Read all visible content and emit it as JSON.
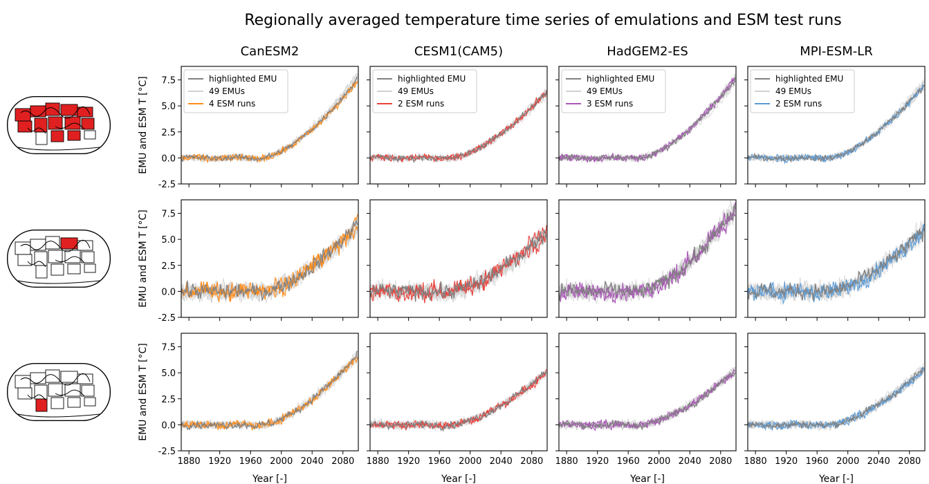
{
  "figure": {
    "title": "Regionally averaged temperature time series of emulations and ESM test runs",
    "row_ylabel": "EMU and ESM T [°C]",
    "xlabel": "Year [-]"
  },
  "models": [
    {
      "name": "CanESM2",
      "color": "#ff8c1a",
      "legend": [
        "highlighted EMU",
        "49 EMUs",
        "4 ESM runs"
      ]
    },
    {
      "name": "CESM1(CAM5)",
      "color": "#e8403a",
      "legend": [
        "highlighted EMU",
        "49 EMUs",
        "2 ESM runs"
      ]
    },
    {
      "name": "HadGEM2-ES",
      "color": "#a855b5",
      "legend": [
        "highlighted EMU",
        "49 EMUs",
        "3 ESM runs"
      ]
    },
    {
      "name": "MPI-ESM-LR",
      "color": "#5b9bd5",
      "legend": [
        "highlighted EMU",
        "49 EMUs",
        "2 ESM runs"
      ]
    }
  ],
  "colors": {
    "highlighted_emu": "#808080",
    "emu_ensemble": "#d0d0d0",
    "region_fill": "#e02020"
  },
  "rows": [
    {
      "region": "multi-region land map",
      "noise": 0.28
    },
    {
      "region": "single northern region map",
      "noise": 0.75
    },
    {
      "region": "single southern region map",
      "noise": 0.35
    }
  ],
  "chart_data": {
    "type": "line",
    "x_range": [
      1870,
      2100
    ],
    "y_range": [
      -2.5,
      8.8
    ],
    "xticks": [
      "1880",
      "1920",
      "1960",
      "2000",
      "2040",
      "2080"
    ],
    "yticks": [
      "-2.5",
      "0.0",
      "2.5",
      "5.0",
      "7.5"
    ],
    "warming_onset_year": 1975,
    "end_of_century_warming": [
      [
        7.6,
        6.3,
        7.5,
        7.0
      ],
      [
        6.5,
        5.8,
        7.8,
        5.9
      ],
      [
        6.7,
        5.1,
        5.2,
        5.4
      ]
    ]
  }
}
